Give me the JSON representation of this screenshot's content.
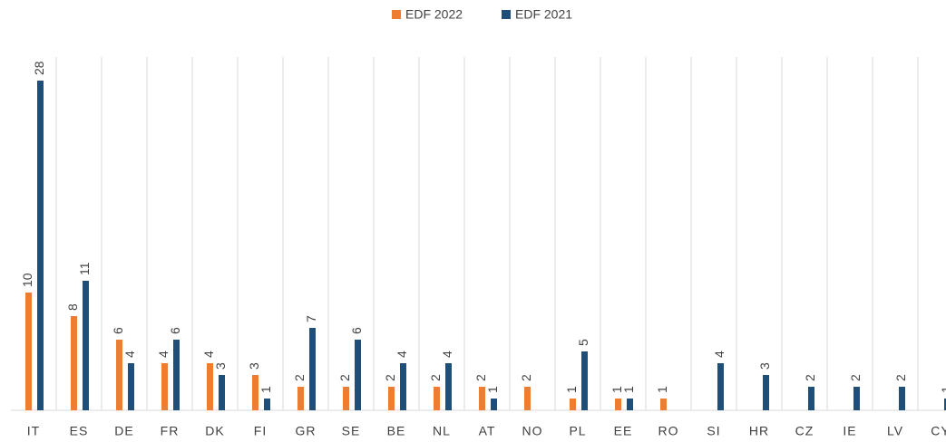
{
  "chart_data": {
    "type": "bar",
    "categories": [
      "IT",
      "ES",
      "DE",
      "FR",
      "DK",
      "FI",
      "GR",
      "SE",
      "BE",
      "NL",
      "AT",
      "NO",
      "PL",
      "EE",
      "RO",
      "SI",
      "HR",
      "CZ",
      "IE",
      "LV",
      "CY"
    ],
    "series": [
      {
        "name": "EDF 2022",
        "color": "#ed7d31",
        "values": [
          10,
          8,
          6,
          4,
          4,
          3,
          2,
          2,
          2,
          2,
          2,
          2,
          1,
          1,
          1,
          null,
          null,
          null,
          null,
          null,
          null
        ]
      },
      {
        "name": "EDF 2021",
        "color": "#1f4e79",
        "values": [
          28,
          11,
          4,
          6,
          3,
          1,
          7,
          6,
          4,
          4,
          1,
          null,
          5,
          1,
          null,
          4,
          3,
          2,
          2,
          2,
          1
        ]
      }
    ],
    "ylim": [
      0,
      30
    ],
    "legend": "top"
  }
}
